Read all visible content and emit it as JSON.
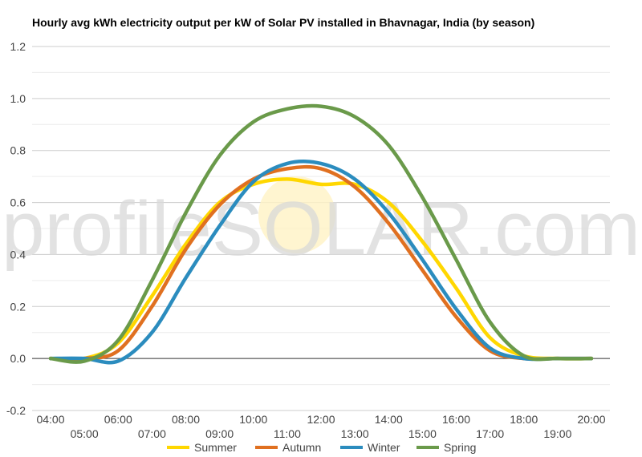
{
  "chart_data": {
    "type": "line",
    "title": "Hourly avg kWh electricity output per kW of Solar PV installed in Bhavnagar, India (by season)",
    "watermark": "profileSOLAR.com",
    "xlabel": "",
    "ylabel": "",
    "x": [
      "04:00",
      "05:00",
      "06:00",
      "07:00",
      "08:00",
      "09:00",
      "10:00",
      "11:00",
      "12:00",
      "13:00",
      "14:00",
      "15:00",
      "16:00",
      "17:00",
      "18:00",
      "19:00",
      "20:00"
    ],
    "ylim": [
      -0.2,
      1.2
    ],
    "yticks": [
      -0.2,
      0.0,
      0.2,
      0.4,
      0.6,
      0.8,
      1.0,
      1.2
    ],
    "ytick_labels": [
      "-0.2",
      "0.0",
      "0.2",
      "0.4",
      "0.6",
      "0.8",
      "1.0",
      "1.2"
    ],
    "grid": true,
    "legend_position": "bottom",
    "series": [
      {
        "name": "Summer",
        "color": "#ffd700",
        "values": [
          0.0,
          0.0,
          0.06,
          0.24,
          0.44,
          0.6,
          0.67,
          0.69,
          0.67,
          0.67,
          0.6,
          0.45,
          0.27,
          0.08,
          0.01,
          0.0,
          0.0
        ]
      },
      {
        "name": "Autumn",
        "color": "#e07020",
        "values": [
          0.0,
          0.0,
          0.03,
          0.2,
          0.42,
          0.59,
          0.69,
          0.73,
          0.73,
          0.66,
          0.52,
          0.34,
          0.16,
          0.03,
          0.0,
          0.0,
          0.0
        ]
      },
      {
        "name": "Winter",
        "color": "#2b8cbe",
        "values": [
          0.0,
          0.0,
          -0.01,
          0.1,
          0.31,
          0.51,
          0.68,
          0.75,
          0.75,
          0.69,
          0.56,
          0.38,
          0.19,
          0.04,
          0.0,
          0.0,
          0.0
        ]
      },
      {
        "name": "Spring",
        "color": "#6a9a4a",
        "values": [
          0.0,
          -0.01,
          0.07,
          0.3,
          0.56,
          0.78,
          0.91,
          0.96,
          0.97,
          0.93,
          0.82,
          0.62,
          0.38,
          0.14,
          0.01,
          0.0,
          0.0
        ]
      }
    ]
  }
}
